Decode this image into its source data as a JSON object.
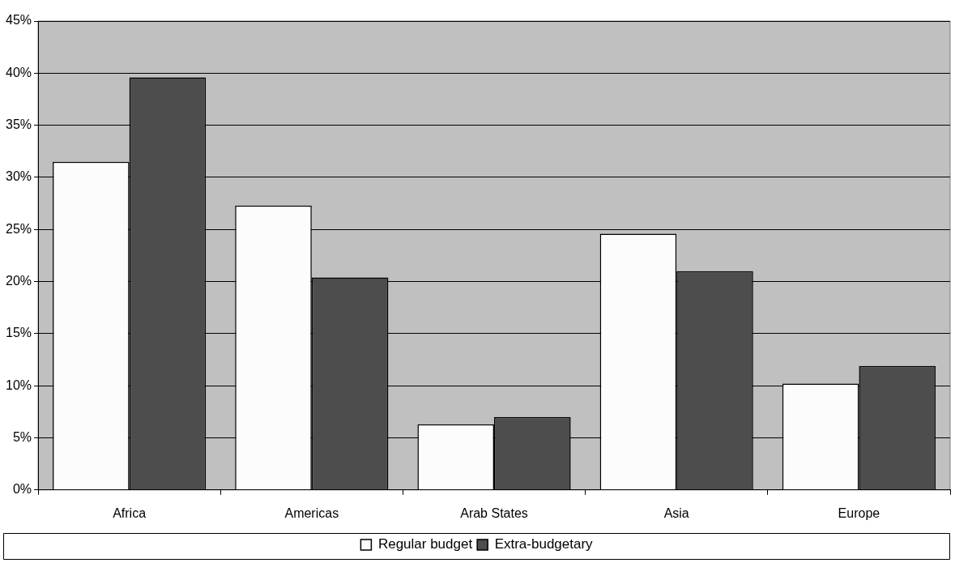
{
  "chart_data": {
    "type": "bar",
    "categories": [
      "Africa",
      "Americas",
      "Arab States",
      "Asia",
      "Europe"
    ],
    "series": [
      {
        "name": "Regular budget",
        "color": "#fcfcfc",
        "values": [
          31.5,
          27.3,
          6.3,
          24.6,
          10.2
        ]
      },
      {
        "name": "Extra-budgetary",
        "color": "#4d4d4d",
        "values": [
          39.6,
          20.4,
          7.0,
          21.0,
          11.9
        ]
      }
    ],
    "ylim": [
      0,
      45
    ],
    "yticks": [
      {
        "value": 0,
        "label": "0%"
      },
      {
        "value": 5,
        "label": "5%"
      },
      {
        "value": 10,
        "label": "10%"
      },
      {
        "value": 15,
        "label": "15%"
      },
      {
        "value": 20,
        "label": "20%"
      },
      {
        "value": 25,
        "label": "25%"
      },
      {
        "value": 30,
        "label": "30%"
      },
      {
        "value": 35,
        "label": "35%"
      },
      {
        "value": 40,
        "label": "40%"
      },
      {
        "value": 45,
        "label": "45%"
      }
    ],
    "grid": "y",
    "legend": "bottom"
  }
}
